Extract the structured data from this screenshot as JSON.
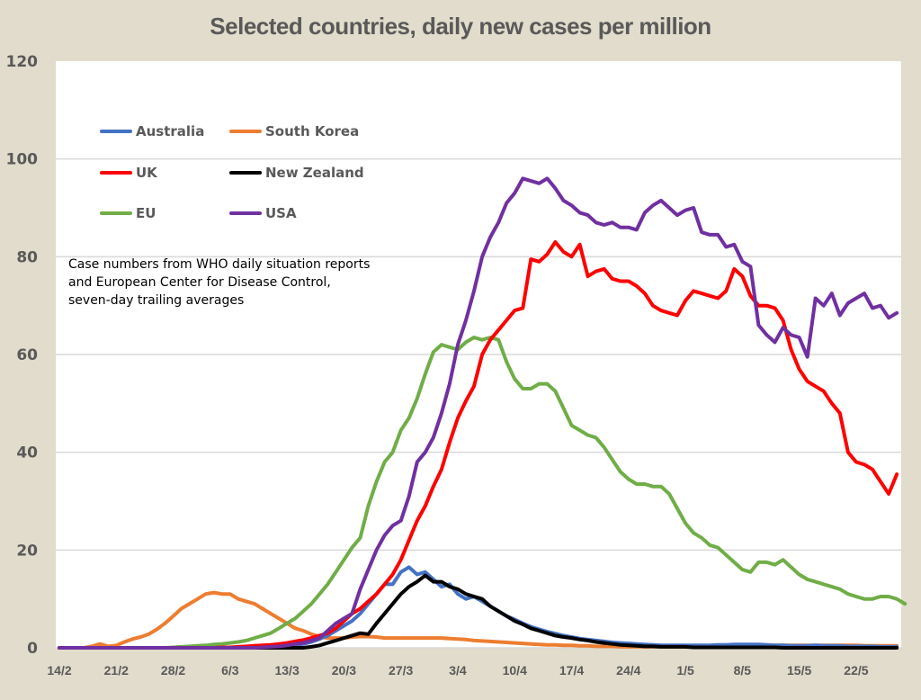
{
  "chart_data": {
    "type": "line",
    "title": "Selected countries, daily new cases per million",
    "xlabel": "",
    "ylabel": "",
    "ylim": [
      0,
      120
    ],
    "yticks": [
      0,
      20,
      40,
      60,
      80,
      100,
      120
    ],
    "grid": true,
    "x_start": "14/2",
    "x_tick_labels": [
      "14/2",
      "21/2",
      "28/2",
      "6/3",
      "13/3",
      "20/3",
      "27/3",
      "3/4",
      "10/4",
      "17/4",
      "24/4",
      "1/5",
      "8/5",
      "15/5",
      "22/5"
    ],
    "x_tick_interval_days": 7,
    "legend_position": "top-left",
    "annotation": [
      "Case numbers from WHO daily situation reports",
      "and European Center for Disease Control,",
      "seven-day trailing averages"
    ],
    "series": [
      {
        "name": "Australia",
        "color": "#4472c4",
        "values": [
          0,
          0,
          0,
          0,
          0,
          0,
          0,
          0,
          0,
          0,
          0,
          0,
          0,
          0,
          0,
          0,
          0,
          0,
          0,
          0,
          0,
          0,
          0,
          0,
          0,
          0,
          0.1,
          0.2,
          0.3,
          0.5,
          0.8,
          1.2,
          1.8,
          2.5,
          3.5,
          4.5,
          5.5,
          7,
          9,
          11,
          13,
          13,
          15.5,
          16.5,
          15,
          15.5,
          14,
          12.5,
          13,
          11,
          10,
          10.5,
          9.5,
          8.5,
          7.5,
          6.5,
          5.8,
          5,
          4.3,
          3.8,
          3.3,
          2.9,
          2.5,
          2.2,
          1.9,
          1.7,
          1.5,
          1.3,
          1.1,
          1,
          0.9,
          0.8,
          0.7,
          0.6,
          0.5,
          0.5,
          0.5,
          0.5,
          0.5,
          0.5,
          0.5,
          0.6,
          0.6,
          0.7,
          0.7,
          0.7,
          0.7,
          0.6,
          0.5,
          0.5,
          0.4,
          0.4,
          0.4,
          0.5,
          0.4,
          0.4,
          0.4,
          0.3,
          0.3,
          0.3,
          0.3,
          0.2,
          0.2,
          0.2
        ]
      },
      {
        "name": "South Korea",
        "color": "#ed7d31",
        "values": [
          0,
          0,
          0,
          0,
          0.3,
          0.8,
          0.3,
          0.5,
          1.2,
          1.8,
          2.2,
          2.8,
          3.8,
          5,
          6.5,
          8,
          9,
          10,
          11,
          11.3,
          11,
          11,
          10,
          9.5,
          9,
          8,
          7,
          6,
          5,
          4,
          3.5,
          2.8,
          2.3,
          2,
          2,
          2,
          2.2,
          2.3,
          2.3,
          2.2,
          2,
          2,
          2,
          2,
          2,
          2,
          2,
          2,
          1.9,
          1.8,
          1.7,
          1.5,
          1.4,
          1.3,
          1.2,
          1.1,
          1,
          0.9,
          0.8,
          0.7,
          0.6,
          0.6,
          0.5,
          0.5,
          0.4,
          0.4,
          0.3,
          0.3,
          0.3,
          0.2,
          0.2,
          0.2,
          0.2,
          0.2,
          0.2,
          0.2,
          0.2,
          0.2,
          0.2,
          0.2,
          0.2,
          0.2,
          0.2,
          0.3,
          0.3,
          0.4,
          0.4,
          0.5,
          0.5,
          0.5,
          0.5,
          0.5,
          0.5,
          0.5,
          0.5,
          0.5,
          0.5,
          0.5,
          0.5,
          0.4,
          0.4,
          0.4,
          0.4,
          0.4
        ]
      },
      {
        "name": "UK",
        "color": "#ff0000",
        "values": [
          0,
          0,
          0,
          0,
          0,
          0,
          0,
          0,
          0,
          0,
          0,
          0,
          0,
          0,
          0,
          0,
          0,
          0,
          0,
          0,
          0.1,
          0.1,
          0.2,
          0.3,
          0.4,
          0.5,
          0.6,
          0.8,
          1,
          1.3,
          1.6,
          2,
          2.5,
          3,
          4,
          5.5,
          7,
          8,
          9.5,
          11,
          13,
          15,
          18,
          22,
          26,
          29,
          33,
          36.5,
          42,
          47,
          50.5,
          53.5,
          60,
          63,
          65,
          67,
          69,
          69.5,
          79.5,
          79,
          80.5,
          83,
          81,
          80,
          82.5,
          76,
          77,
          77.5,
          75.5,
          75,
          75,
          74,
          72.5,
          70,
          69,
          68.5,
          68,
          71,
          73,
          72.5,
          72,
          71.5,
          73,
          77.5,
          76,
          72,
          70,
          70,
          69.5,
          67,
          61,
          57,
          54.5,
          53.5,
          52.5,
          50,
          48,
          40,
          38,
          37.5,
          36.5,
          34,
          31.5,
          35.5
        ]
      },
      {
        "name": "New Zealand",
        "color": "#000000",
        "values": [
          0,
          0,
          0,
          0,
          0,
          0,
          0,
          0,
          0,
          0,
          0,
          0,
          0,
          0,
          0,
          0,
          0,
          0,
          0,
          0,
          0,
          0,
          0,
          0,
          0,
          0,
          0,
          0,
          0,
          0,
          0,
          0.2,
          0.5,
          1,
          1.5,
          2,
          2.5,
          3,
          2.8,
          5,
          7,
          9,
          11,
          12.5,
          13.5,
          14.8,
          13.5,
          13.5,
          12.5,
          12,
          11,
          10.5,
          10,
          8.5,
          7.5,
          6.5,
          5.5,
          4.8,
          4,
          3.5,
          3,
          2.5,
          2.2,
          2,
          1.7,
          1.5,
          1.2,
          1,
          0.8,
          0.6,
          0.5,
          0.4,
          0.3,
          0.3,
          0.2,
          0.2,
          0.2,
          0.2,
          0.1,
          0.1,
          0.1,
          0.1,
          0.1,
          0.1,
          0.1,
          0.1,
          0.1,
          0.1,
          0.1,
          0,
          0,
          0,
          0,
          0,
          0,
          0,
          0,
          0,
          0,
          0,
          0,
          0,
          0,
          0
        ]
      },
      {
        "name": "EU",
        "color": "#70ad47",
        "values": [
          0,
          0,
          0,
          0,
          0,
          0,
          0,
          0,
          0,
          0,
          0,
          0,
          0,
          0,
          0.1,
          0.2,
          0.3,
          0.4,
          0.5,
          0.7,
          0.8,
          1,
          1.2,
          1.5,
          2,
          2.5,
          3,
          4,
          5,
          6,
          7.5,
          9,
          11,
          13,
          15.5,
          18,
          20.5,
          22.5,
          29,
          34,
          38,
          40,
          44.5,
          47,
          51,
          56,
          60.5,
          62,
          61.5,
          61,
          62.5,
          63.5,
          63,
          63.5,
          63,
          58.5,
          55,
          53,
          53,
          54,
          54,
          52.5,
          49,
          45.5,
          44.5,
          43.5,
          43,
          41,
          38.5,
          36,
          34.5,
          33.5,
          33.5,
          33,
          33,
          31.5,
          28.5,
          25.5,
          23.5,
          22.5,
          21,
          20.5,
          19,
          17.5,
          16,
          15.5,
          17.5,
          17.5,
          17,
          18,
          16.5,
          15,
          14,
          13.5,
          13,
          12.5,
          12,
          11,
          10.5,
          10,
          10,
          10.5,
          10.5,
          10,
          9
        ]
      },
      {
        "name": "USA",
        "color": "#7030a0",
        "values": [
          0,
          0,
          0,
          0,
          0,
          0,
          0,
          0,
          0,
          0,
          0,
          0,
          0,
          0,
          0,
          0,
          0,
          0,
          0,
          0,
          0,
          0,
          0,
          0,
          0,
          0.1,
          0.2,
          0.3,
          0.5,
          0.8,
          1,
          1.5,
          2,
          3.5,
          5,
          6,
          7,
          12,
          16,
          20,
          23,
          25,
          26,
          31,
          38,
          40,
          43,
          48,
          54,
          62,
          67,
          73,
          80,
          84,
          87,
          91,
          93,
          96,
          95.5,
          95,
          96,
          94,
          91.5,
          90.5,
          89,
          88.5,
          87,
          86.5,
          87,
          86,
          86,
          85.5,
          89,
          90.5,
          91.5,
          90,
          88.5,
          89.5,
          90,
          85,
          84.5,
          84.5,
          82,
          82.5,
          79,
          78,
          66,
          64,
          62.5,
          65.5,
          64,
          63.5,
          59.5,
          71.5,
          70,
          72.5,
          68,
          70.5,
          71.5,
          72.5,
          69.5,
          70,
          67.5,
          68.5
        ]
      }
    ]
  }
}
